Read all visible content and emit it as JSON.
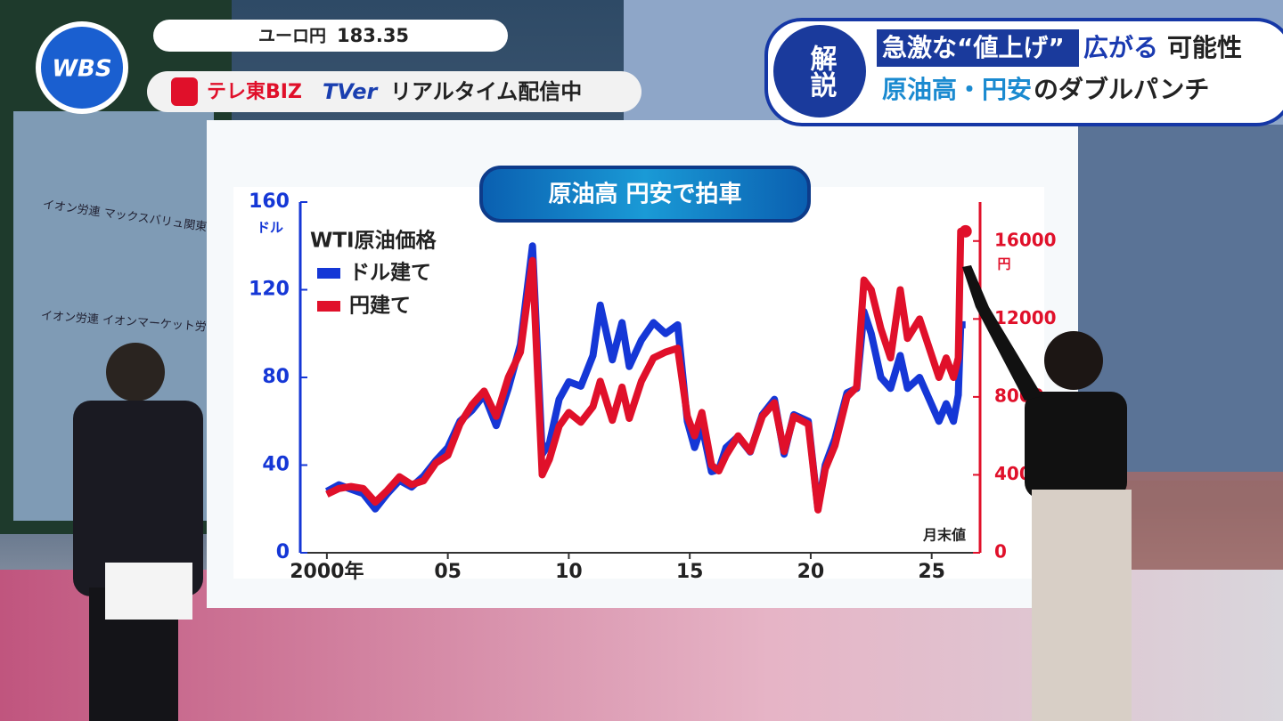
{
  "chart_data": {
    "type": "line",
    "title": "原油高 円安で拍車",
    "legend_title": "WTI原油価格",
    "y_unit": "ドル",
    "y2_unit": "円",
    "note": "月末値",
    "xlim": [
      1998.9,
      2027
    ],
    "xticks": [
      {
        "value": 2000,
        "label": "2000年"
      },
      {
        "value": 2005,
        "label": "05"
      },
      {
        "value": 2010,
        "label": "10"
      },
      {
        "value": 2015,
        "label": "15"
      },
      {
        "value": 2020,
        "label": "20"
      },
      {
        "value": 2025,
        "label": "25"
      }
    ],
    "ylim": [
      0,
      160
    ],
    "yticks": [
      0,
      40,
      80,
      120,
      160
    ],
    "y2lim": [
      0,
      18000
    ],
    "y2ticks": [
      0,
      4000,
      8000,
      12000,
      16000
    ],
    "x": [
      2000.0,
      2000.5,
      2001.0,
      2001.5,
      2002.0,
      2002.5,
      2003.0,
      2003.5,
      2004.0,
      2004.5,
      2005.0,
      2005.5,
      2006.0,
      2006.5,
      2007.0,
      2007.5,
      2008.0,
      2008.5,
      2008.9,
      2009.2,
      2009.6,
      2010.0,
      2010.5,
      2011.0,
      2011.3,
      2011.8,
      2012.2,
      2012.5,
      2013.0,
      2013.5,
      2014.0,
      2014.5,
      2014.9,
      2015.2,
      2015.5,
      2015.9,
      2016.2,
      2016.5,
      2017.0,
      2017.5,
      2018.0,
      2018.5,
      2018.9,
      2019.3,
      2019.9,
      2020.3,
      2020.6,
      2021.0,
      2021.5,
      2021.9,
      2022.2,
      2022.5,
      2022.9,
      2023.3,
      2023.7,
      2024.0,
      2024.5,
      2024.9,
      2025.3,
      2025.6,
      2025.9,
      2026.1,
      2026.2,
      2026.4
    ],
    "series": [
      {
        "name": "ドル建て",
        "color": "#1537d6",
        "values": [
          28,
          31,
          29,
          27,
          20,
          27,
          33,
          30,
          35,
          42,
          48,
          60,
          65,
          72,
          58,
          75,
          95,
          140,
          45,
          50,
          70,
          78,
          76,
          90,
          113,
          88,
          105,
          85,
          97,
          105,
          100,
          104,
          60,
          48,
          58,
          37,
          38,
          48,
          53,
          46,
          63,
          70,
          45,
          63,
          60,
          20,
          40,
          52,
          73,
          75,
          110,
          100,
          80,
          75,
          90,
          75,
          80,
          70,
          60,
          68,
          60,
          72,
          104,
          104
        ]
      },
      {
        "name": "円建て",
        "color": "#e0102a",
        "axis": "y2",
        "values": [
          3000,
          3300,
          3400,
          3300,
          2600,
          3200,
          3900,
          3500,
          3700,
          4600,
          5000,
          6600,
          7600,
          8300,
          7000,
          9000,
          10300,
          15000,
          4000,
          4800,
          6500,
          7200,
          6700,
          7500,
          8800,
          6800,
          8500,
          6900,
          8800,
          10000,
          10300,
          10500,
          7000,
          6000,
          7200,
          4500,
          4200,
          5000,
          6000,
          5200,
          7000,
          7700,
          5200,
          7000,
          6600,
          2200,
          4300,
          5500,
          8000,
          8500,
          14000,
          13500,
          11500,
          10000,
          13500,
          11000,
          12000,
          10500,
          9000,
          10000,
          9000,
          10000,
          16500,
          16500
        ]
      }
    ]
  },
  "broadcast": {
    "logo": "WBS",
    "ticker_label": "ユーロ円",
    "ticker_value": 183.35,
    "stream_brand": "テレ東BIZ",
    "stream_partner": "TVer",
    "stream_text": "リアルタイム配信中",
    "section": "解説",
    "headline_1a": "急激な“値上げ”",
    "headline_1b": "広がる",
    "headline_1c": "可能性",
    "headline_2a": "原油高・円安",
    "headline_2b": "のダブルパンチ",
    "sign_1": "イオン労連 マックスバリュ関東ワーカーズユ",
    "sign_2": "イオン労連 イオンマーケット労働"
  }
}
